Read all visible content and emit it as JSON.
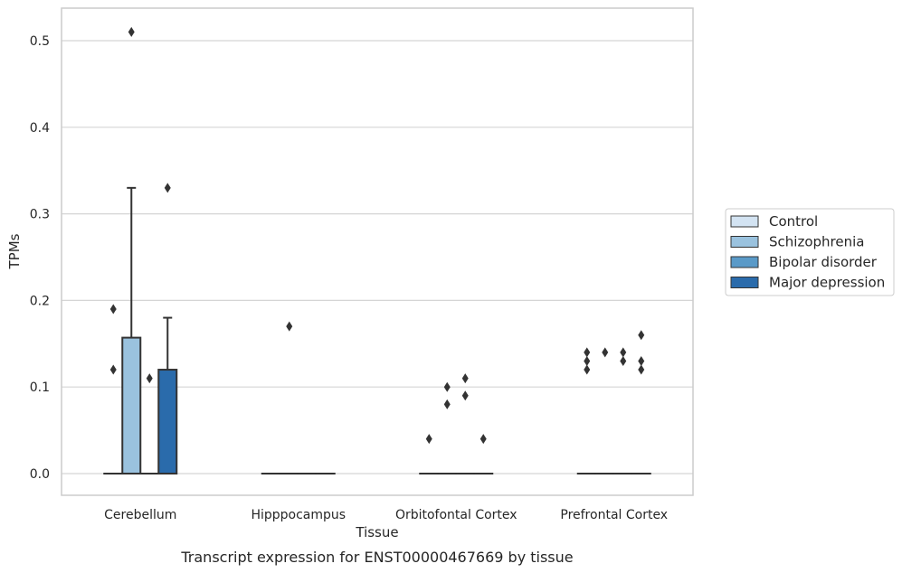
{
  "chart_data": {
    "type": "box",
    "title": "",
    "caption": "Transcript expression for ENST00000467669 by tissue",
    "xlabel": "Tissue",
    "ylabel": "TPMs",
    "ylim": [
      -0.025,
      0.535
    ],
    "yticks": [
      0.0,
      0.1,
      0.2,
      0.3,
      0.4,
      0.5
    ],
    "ytick_labels": [
      "0.0",
      "0.1",
      "0.2",
      "0.3",
      "0.4",
      "0.5"
    ],
    "grid": "horizontal",
    "legend_position": "right",
    "categories": [
      "Cerebellum",
      "Hipppocampus",
      "Orbitofontal Cortex",
      "Prefrontal Cortex"
    ],
    "series": [
      {
        "name": "Control",
        "color": "#d3e3f2",
        "boxes": [
          {
            "q1": 0,
            "median": 0,
            "q3": 0,
            "whisker_low": 0,
            "whisker_high": 0,
            "outliers": [
              0.12,
              0.19
            ]
          },
          {
            "q1": 0,
            "median": 0,
            "q3": 0,
            "whisker_low": 0,
            "whisker_high": 0,
            "outliers": []
          },
          {
            "q1": 0,
            "median": 0,
            "q3": 0,
            "whisker_low": 0,
            "whisker_high": 0,
            "outliers": [
              0.04
            ]
          },
          {
            "q1": 0,
            "median": 0,
            "q3": 0,
            "whisker_low": 0,
            "whisker_high": 0,
            "outliers": [
              0.12,
              0.13,
              0.14
            ]
          }
        ]
      },
      {
        "name": "Schizophrenia",
        "color": "#9ac2de",
        "boxes": [
          {
            "q1": 0,
            "median": 0,
            "q3": 0.157,
            "whisker_low": 0,
            "whisker_high": 0.33,
            "outliers": [
              0.51
            ]
          },
          {
            "q1": 0,
            "median": 0,
            "q3": 0,
            "whisker_low": 0,
            "whisker_high": 0,
            "outliers": [
              0.17
            ]
          },
          {
            "q1": 0,
            "median": 0,
            "q3": 0,
            "whisker_low": 0,
            "whisker_high": 0,
            "outliers": [
              0.08,
              0.1
            ]
          },
          {
            "q1": 0,
            "median": 0,
            "q3": 0,
            "whisker_low": 0,
            "whisker_high": 0,
            "outliers": [
              0.14
            ]
          }
        ]
      },
      {
        "name": "Bipolar disorder",
        "color": "#5a9ac8",
        "boxes": [
          {
            "q1": 0,
            "median": 0,
            "q3": 0,
            "whisker_low": 0,
            "whisker_high": 0,
            "outliers": [
              0.11
            ]
          },
          {
            "q1": 0,
            "median": 0,
            "q3": 0,
            "whisker_low": 0,
            "whisker_high": 0,
            "outliers": []
          },
          {
            "q1": 0,
            "median": 0,
            "q3": 0,
            "whisker_low": 0,
            "whisker_high": 0,
            "outliers": [
              0.09,
              0.11
            ]
          },
          {
            "q1": 0,
            "median": 0,
            "q3": 0,
            "whisker_low": 0,
            "whisker_high": 0,
            "outliers": [
              0.13,
              0.14
            ]
          }
        ]
      },
      {
        "name": "Major depression",
        "color": "#2a6bab",
        "boxes": [
          {
            "q1": 0,
            "median": 0,
            "q3": 0.12,
            "whisker_low": 0,
            "whisker_high": 0.18,
            "outliers": [
              0.33
            ]
          },
          {
            "q1": 0,
            "median": 0,
            "q3": 0,
            "whisker_low": 0,
            "whisker_high": 0,
            "outliers": []
          },
          {
            "q1": 0,
            "median": 0,
            "q3": 0,
            "whisker_low": 0,
            "whisker_high": 0,
            "outliers": [
              0.04
            ]
          },
          {
            "q1": 0,
            "median": 0,
            "q3": 0,
            "whisker_low": 0,
            "whisker_high": 0,
            "outliers": [
              0.12,
              0.13,
              0.16
            ]
          }
        ]
      }
    ]
  }
}
